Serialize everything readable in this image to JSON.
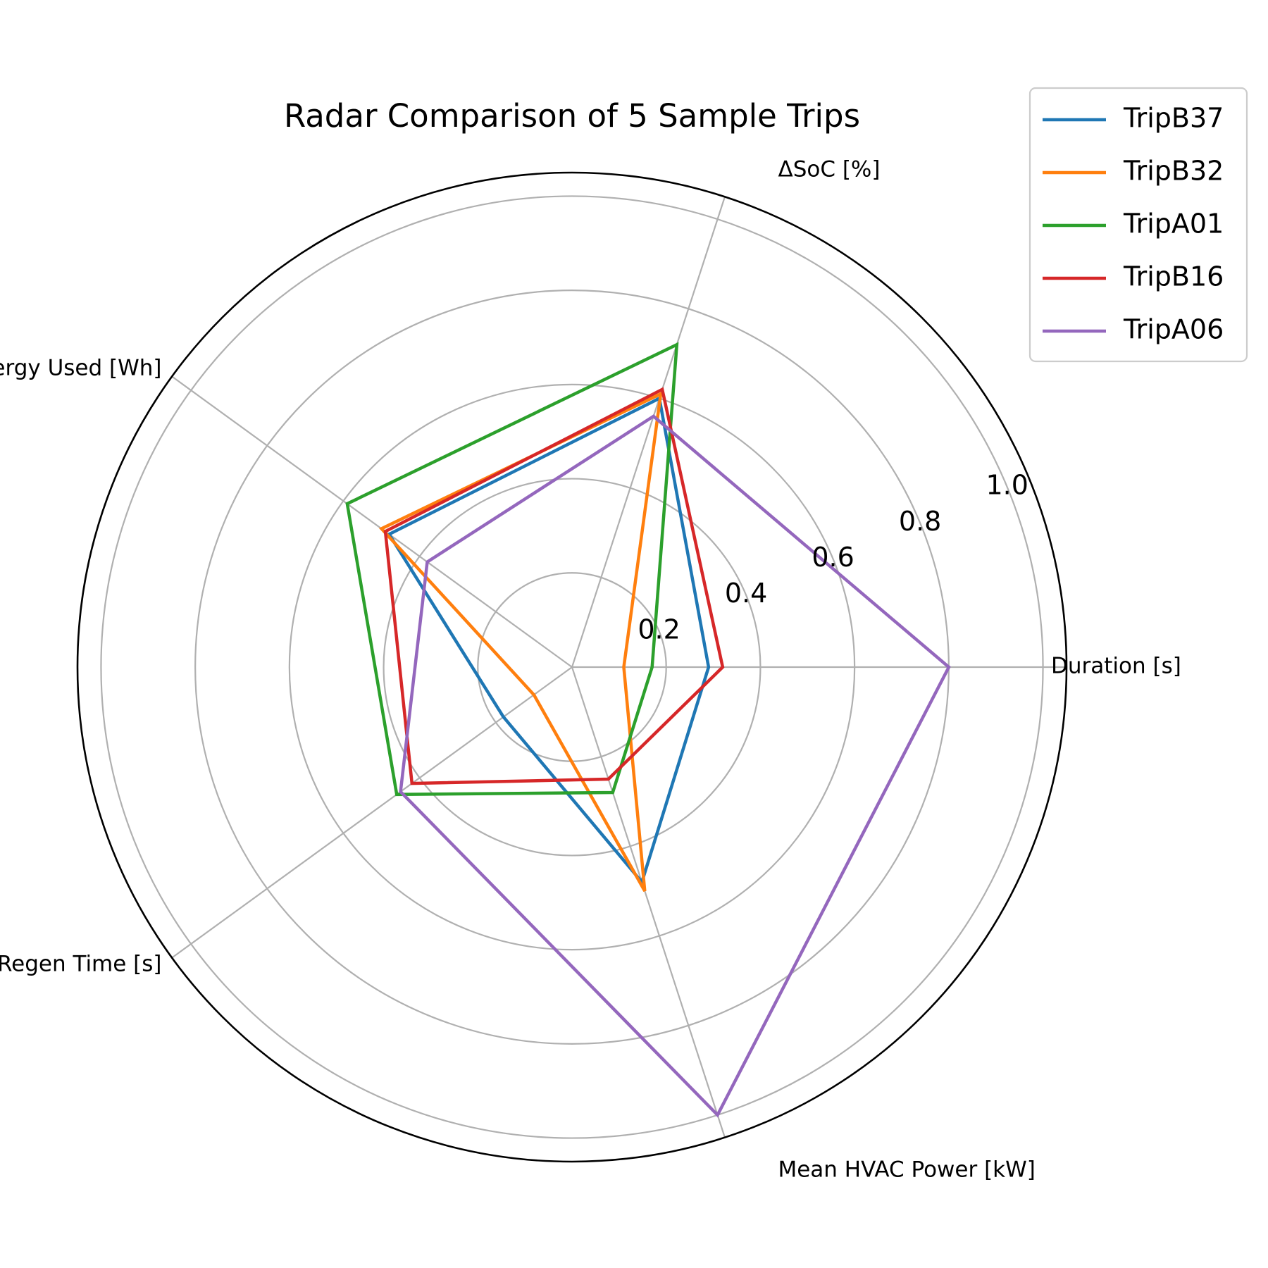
{
  "chart_data": {
    "type": "radar",
    "title": "Radar Comparison of 5 Sample Trips",
    "axes": [
      "Duration [s]",
      "ΔSoC [%]",
      "Energy Used [Wh]",
      "Regen Time [s]",
      "Mean HVAC Power [kW]"
    ],
    "rlim": [
      0,
      1.05
    ],
    "r_ticks": [
      0.2,
      0.4,
      0.6,
      0.8,
      1.0
    ],
    "r_tick_labels": [
      "0.2",
      "0.4",
      "0.6",
      "0.8",
      "1.0"
    ],
    "grid": true,
    "legend_position": "top-right",
    "series": [
      {
        "name": "TripB37",
        "color": "#1f77b4",
        "values": [
          0.29,
          0.6,
          0.48,
          0.18,
          0.48
        ]
      },
      {
        "name": "TripB32",
        "color": "#ff7f0e",
        "values": [
          0.11,
          0.61,
          0.5,
          0.1,
          0.5
        ]
      },
      {
        "name": "TripA01",
        "color": "#2ca02c",
        "values": [
          0.17,
          0.72,
          0.59,
          0.46,
          0.28
        ]
      },
      {
        "name": "TripB16",
        "color": "#d62728",
        "values": [
          0.32,
          0.62,
          0.49,
          0.42,
          0.25
        ]
      },
      {
        "name": "TripA06",
        "color": "#9467bd",
        "values": [
          0.8,
          0.56,
          0.38,
          0.45,
          1.0
        ]
      }
    ]
  }
}
